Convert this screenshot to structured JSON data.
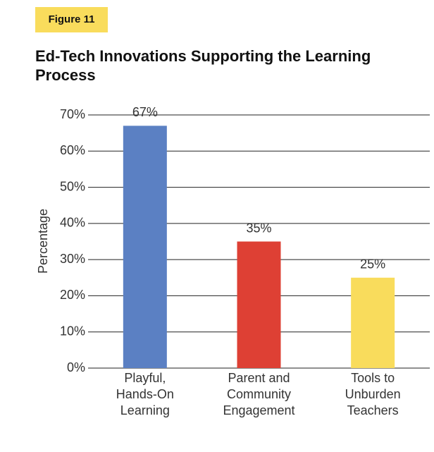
{
  "figure_label": "Figure 11",
  "chart_data": {
    "type": "bar",
    "title": "Ed-Tech Innovations Supporting the Learning Process",
    "y_label": "Percentage",
    "categories": [
      "Playful,\nHands-On\nLearning",
      "Parent and\nCommunity\nEngagement",
      "Tools to\nUnburden\nTeachers"
    ],
    "values": [
      67,
      35,
      25
    ],
    "value_labels": [
      "67%",
      "35%",
      "25%"
    ],
    "colors": [
      "#5b80c3",
      "#de4034",
      "#f9dc5c"
    ],
    "ylim": [
      0,
      70
    ],
    "yticks": [
      {
        "value": 0,
        "label": "0%"
      },
      {
        "value": 10,
        "label": "10%"
      },
      {
        "value": 20,
        "label": "20%"
      },
      {
        "value": 30,
        "label": "30%"
      },
      {
        "value": 40,
        "label": "40%"
      },
      {
        "value": 50,
        "label": "50%"
      },
      {
        "value": 60,
        "label": "60%"
      },
      {
        "value": 70,
        "label": "70%"
      }
    ],
    "grid": true
  }
}
